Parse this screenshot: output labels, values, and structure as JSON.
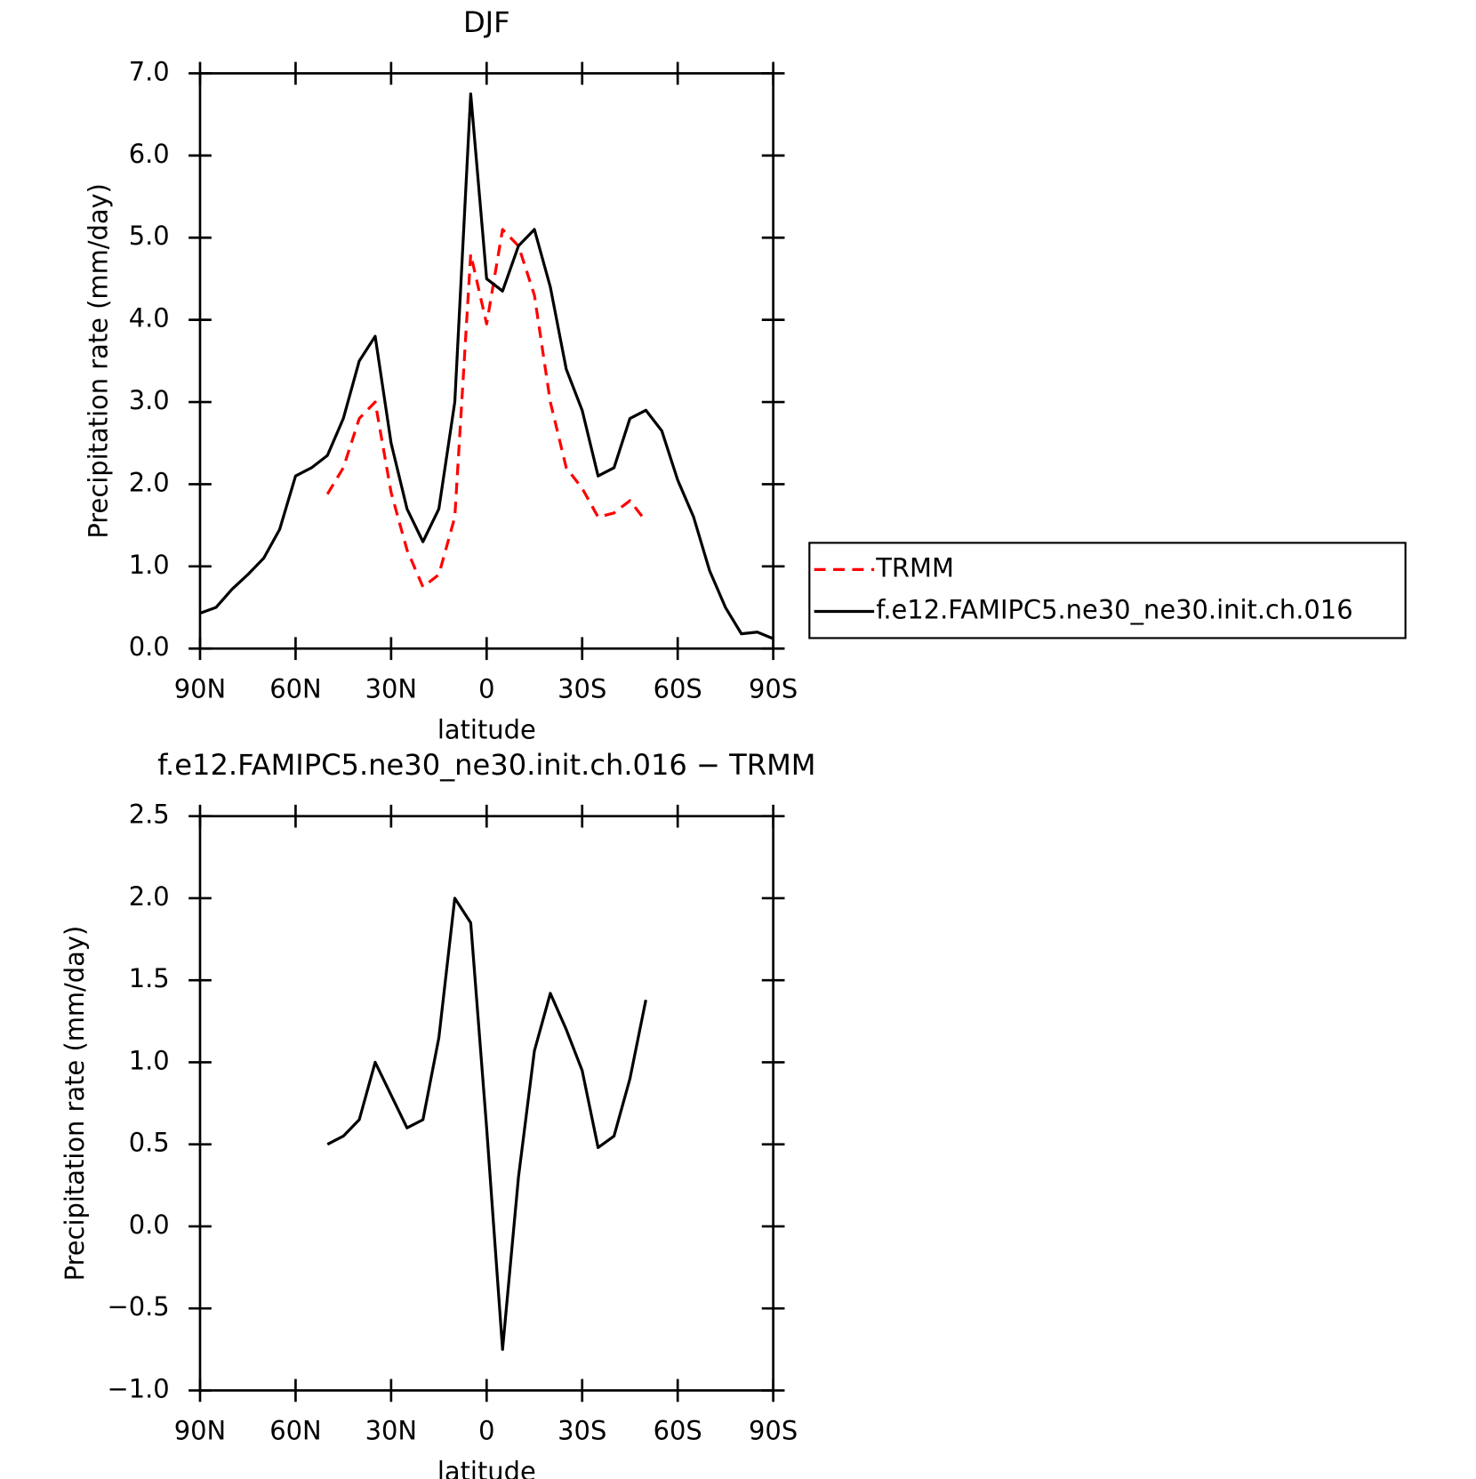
{
  "chart_data": [
    {
      "type": "line",
      "title": "DJF",
      "xlabel": "latitude",
      "ylabel": "Precipitation rate (mm/day)",
      "x": [
        90,
        85,
        80,
        75,
        70,
        65,
        60,
        55,
        50,
        45,
        40,
        35,
        30,
        25,
        20,
        15,
        10,
        5,
        0,
        -5,
        -10,
        -15,
        -20,
        -25,
        -30,
        -35,
        -40,
        -45,
        -50,
        -55,
        -60,
        -65,
        -70,
        -75,
        -80,
        -85,
        -90
      ],
      "series": [
        {
          "name": "TRMM",
          "color": "#ff0000",
          "dashed": true,
          "values": [
            null,
            null,
            null,
            null,
            null,
            null,
            null,
            null,
            1.88,
            2.2,
            2.8,
            3.0,
            1.9,
            1.2,
            0.75,
            0.9,
            1.6,
            4.8,
            3.95,
            5.1,
            4.9,
            4.3,
            3.0,
            2.2,
            1.95,
            1.6,
            1.65,
            1.8,
            1.55,
            null,
            null,
            null,
            null,
            null,
            null,
            null,
            null
          ]
        },
        {
          "name": "f.e12.FAMIPC5.ne30_ne30.init.ch.016",
          "color": "#000000",
          "dashed": false,
          "values": [
            0.43,
            0.5,
            0.72,
            0.9,
            1.1,
            1.45,
            2.1,
            2.2,
            2.35,
            2.8,
            3.5,
            3.8,
            2.5,
            1.7,
            1.3,
            1.7,
            3.0,
            6.75,
            4.5,
            4.35,
            4.9,
            5.1,
            4.4,
            3.4,
            2.9,
            2.1,
            2.2,
            2.8,
            2.9,
            2.65,
            2.05,
            1.6,
            0.95,
            0.5,
            0.18,
            0.2,
            0.12
          ]
        }
      ],
      "xlim": [
        90,
        -90
      ],
      "xticks": [
        {
          "value": 90,
          "label": "90N"
        },
        {
          "value": 60,
          "label": "60N"
        },
        {
          "value": 30,
          "label": "30N"
        },
        0,
        {
          "value": -30,
          "label": "30S"
        },
        {
          "value": -60,
          "label": "60S"
        },
        {
          "value": -90,
          "label": "90S"
        }
      ],
      "ylim": [
        0,
        7
      ],
      "yticks": [
        {
          "value": 0,
          "label": "0.0"
        },
        {
          "value": 1,
          "label": "1.0"
        },
        {
          "value": 2,
          "label": "2.0"
        },
        {
          "value": 3,
          "label": "3.0"
        },
        {
          "value": 4,
          "label": "4.0"
        },
        {
          "value": 5,
          "label": "5.0"
        },
        {
          "value": 6,
          "label": "6.0"
        },
        {
          "value": 7,
          "label": "7.0"
        }
      ],
      "legend": "right"
    },
    {
      "type": "line",
      "title": "f.e12.FAMIPC5.ne30_ne30.init.ch.016 − TRMM",
      "xlabel": "latitude",
      "ylabel": "Precipitation rate (mm/day)",
      "x": [
        50,
        45,
        40,
        35,
        30,
        25,
        20,
        15,
        10,
        5,
        0,
        -5,
        -10,
        -15,
        -20,
        -25,
        -30,
        -35,
        -40,
        -45,
        -50
      ],
      "series": [
        {
          "color": "#000000",
          "dashed": false,
          "values": [
            0.5,
            0.55,
            0.65,
            1.0,
            0.8,
            0.6,
            0.65,
            1.15,
            2.0,
            1.85,
            0.6,
            -0.75,
            0.3,
            1.07,
            1.42,
            1.2,
            0.95,
            0.48,
            0.55,
            0.9,
            1.38
          ]
        }
      ],
      "xlim": [
        90,
        -90
      ],
      "xticks": [
        {
          "value": 90,
          "label": "90N"
        },
        {
          "value": 60,
          "label": "60N"
        },
        {
          "value": 30,
          "label": "30N"
        },
        0,
        {
          "value": -30,
          "label": "30S"
        },
        {
          "value": -60,
          "label": "60S"
        },
        {
          "value": -90,
          "label": "90S"
        }
      ],
      "ylim": [
        -1,
        2.5
      ],
      "yticks": [
        {
          "value": -1,
          "label": "−1.0"
        },
        {
          "value": -0.5,
          "label": "−0.5"
        },
        {
          "value": 0,
          "label": "0.0"
        },
        0.5,
        {
          "value": 1,
          "label": "1.0"
        },
        1.5,
        {
          "value": 2,
          "label": "2.0"
        },
        2.5
      ]
    }
  ]
}
